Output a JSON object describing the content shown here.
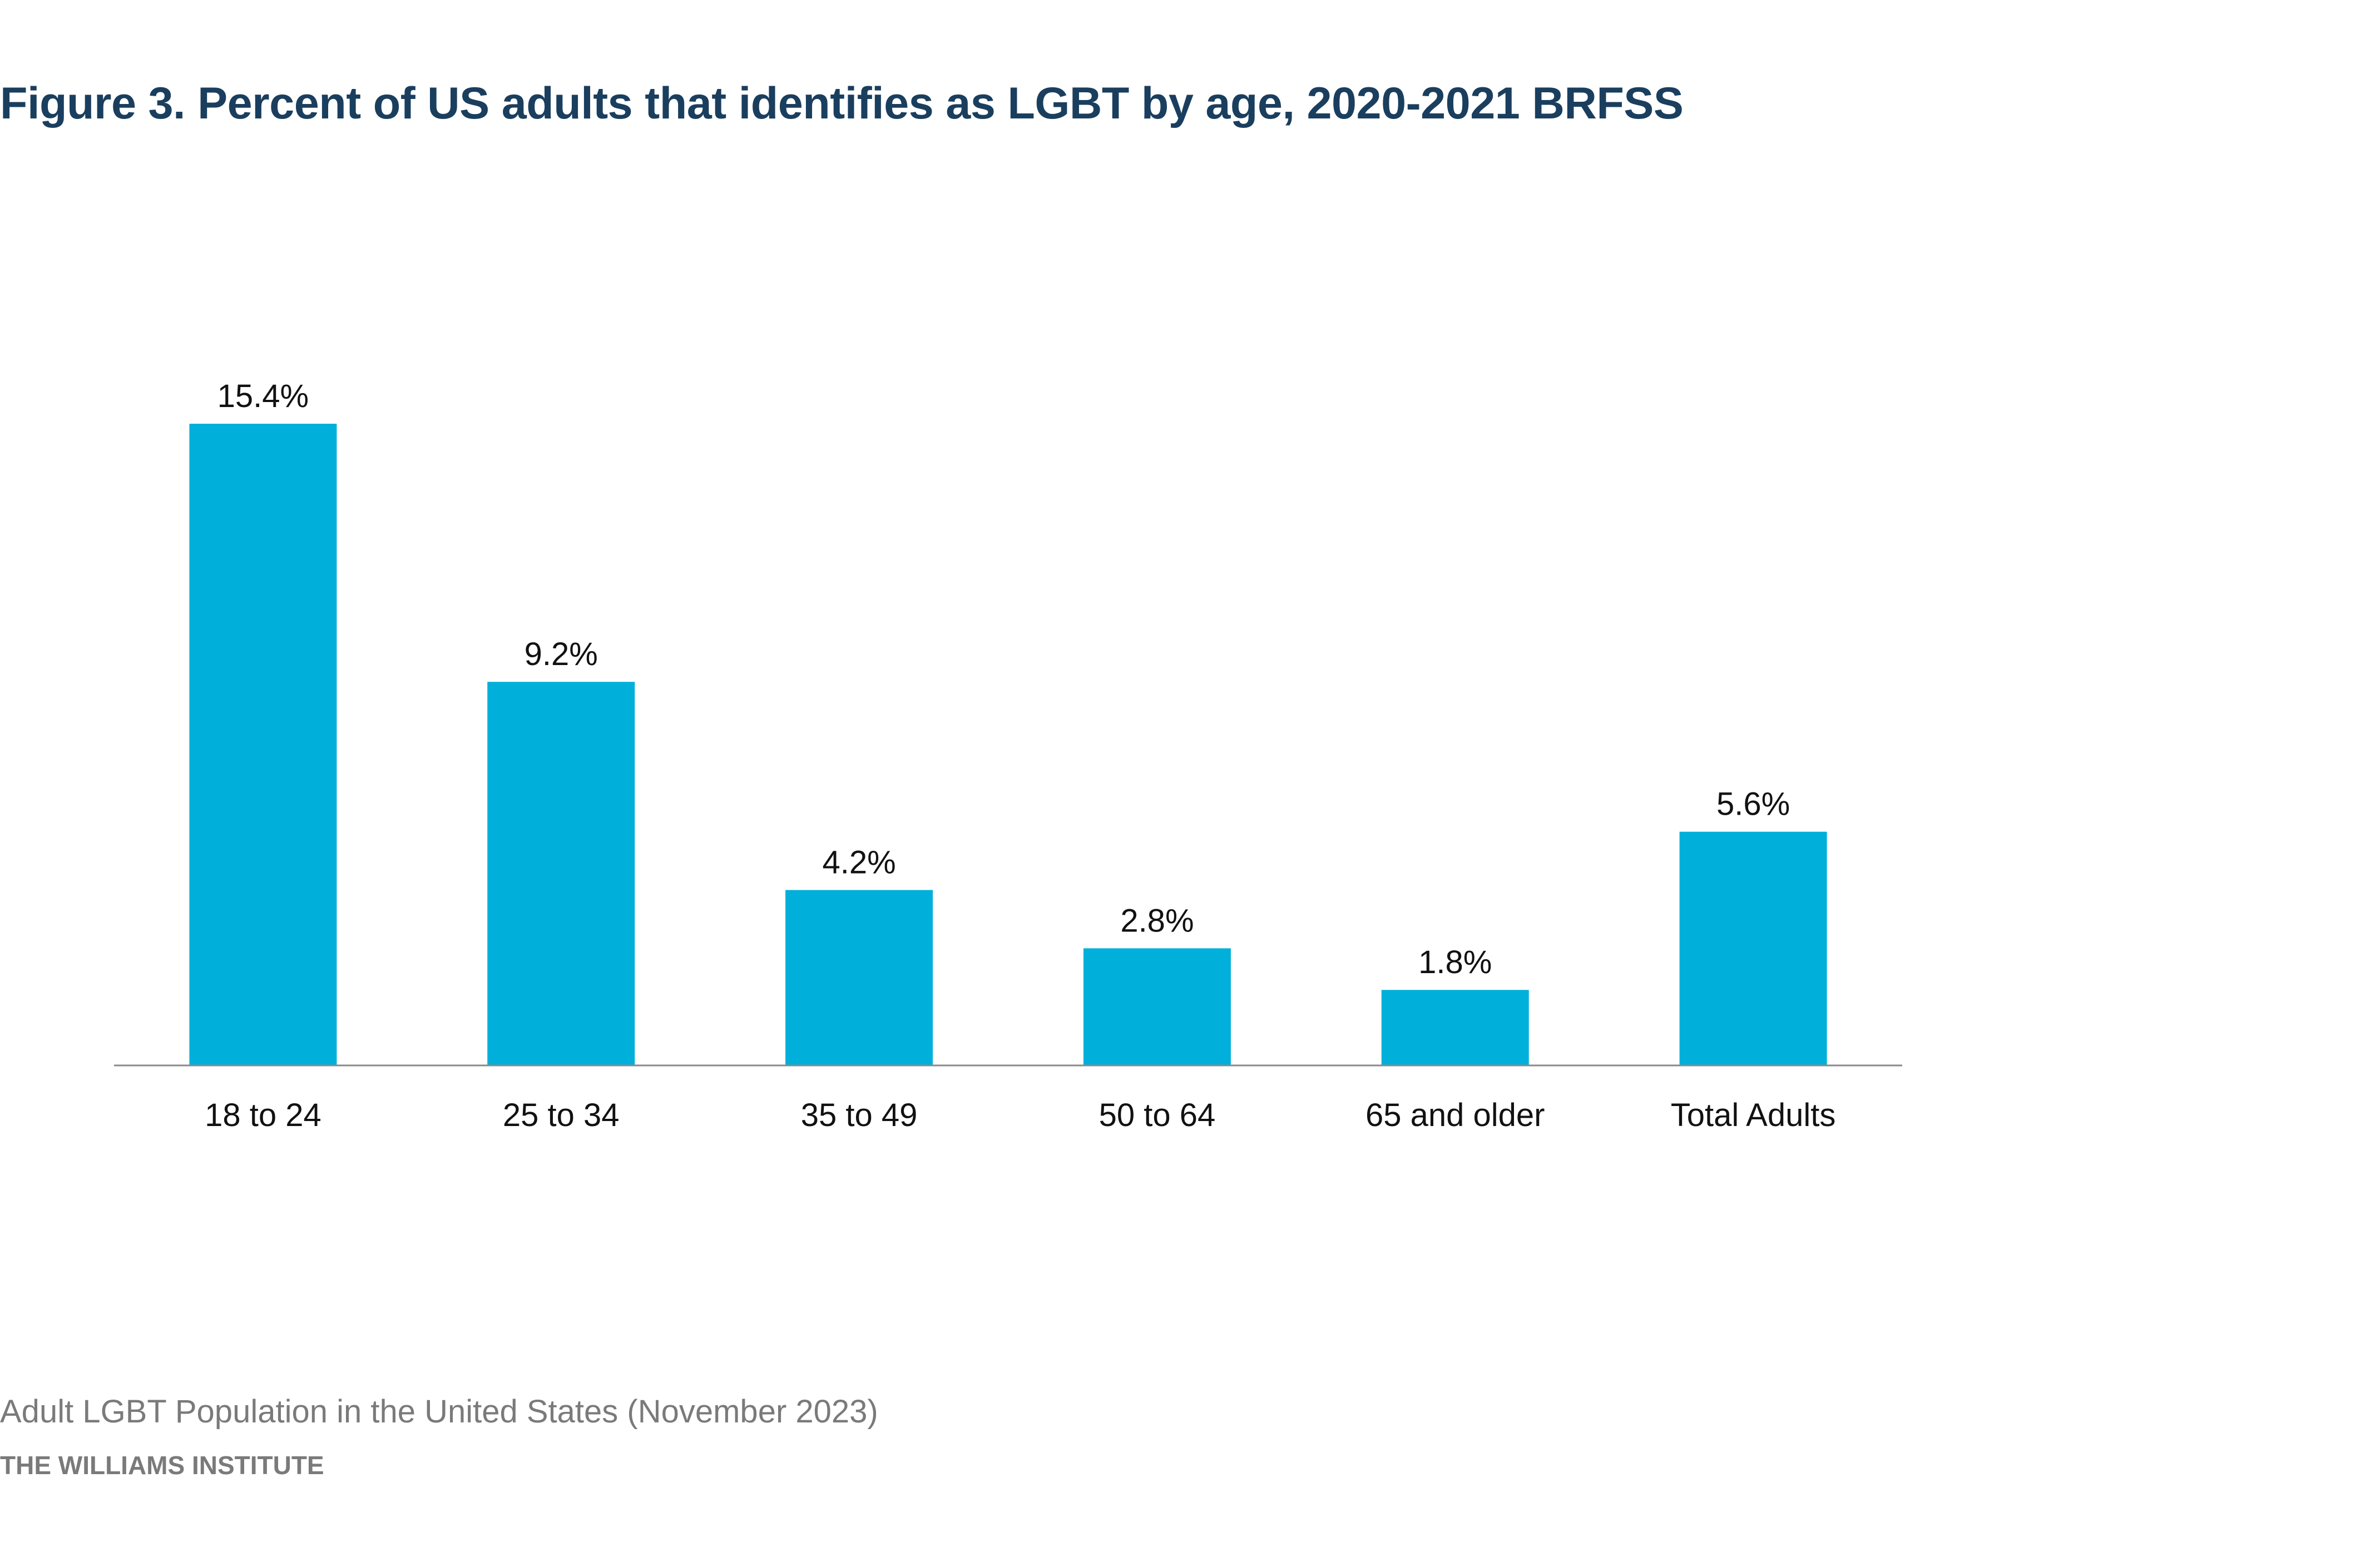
{
  "title": "Figure 3. Percent of US adults that identifies as LGBT by age, 2020-2021 BRFSS",
  "footer": {
    "source": "Adult LGBT Population in the United States (November 2023)",
    "organization": "THE WILLIAMS INSTITUTE"
  },
  "colors": {
    "title": "#1a3e5e",
    "bar": "#00b0da",
    "axis": "#8a8a8a",
    "label": "#111111",
    "footer": "#7a7a7a"
  },
  "chart_data": {
    "type": "bar",
    "categories": [
      "18 to 24",
      "25 to 34",
      "35 to 49",
      "50 to 64",
      "65 and older",
      "Total Adults"
    ],
    "values": [
      15.4,
      9.2,
      4.2,
      2.8,
      1.8,
      5.6
    ],
    "data_labels": [
      "15.4%",
      "9.2%",
      "4.2%",
      "2.8%",
      "1.8%",
      "5.6%"
    ],
    "title": "Figure 3. Percent of US adults that identifies as LGBT by age, 2020-2021 BRFSS",
    "xlabel": "",
    "ylabel": "",
    "ylim": [
      0,
      15.4
    ],
    "grid": false,
    "legend": "none",
    "y_axis_shown": false
  }
}
